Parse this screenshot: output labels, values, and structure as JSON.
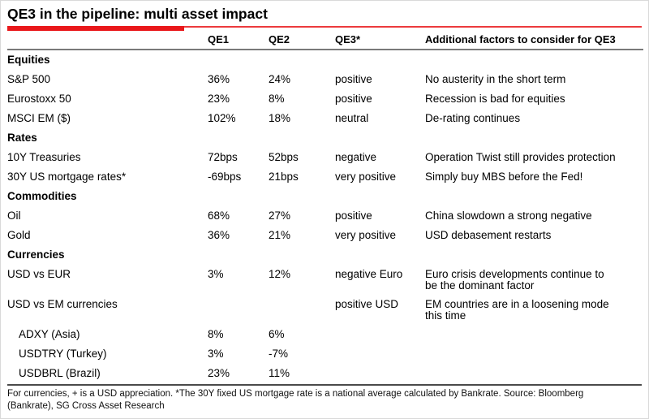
{
  "chart_data": {
    "type": "table",
    "title": "QE3 in the pipeline: multi asset impact",
    "columns": {
      "asset": "",
      "qe1": "QE1",
      "qe2": "QE2",
      "qe3": "QE3*",
      "notes": "Additional factors to consider for QE3"
    },
    "sections": [
      {
        "name": "Equities",
        "rows": [
          {
            "asset": "S&P 500",
            "qe1": "36%",
            "qe2": "24%",
            "qe3": "positive",
            "note": "No austerity in the short term",
            "indent": false
          },
          {
            "asset": "Eurostoxx 50",
            "qe1": "23%",
            "qe2": "8%",
            "qe3": "positive",
            "note": "Recession is bad for equities",
            "indent": false
          },
          {
            "asset": "MSCI EM ($)",
            "qe1": "102%",
            "qe2": "18%",
            "qe3": "neutral",
            "note": "De-rating continues",
            "indent": false
          }
        ]
      },
      {
        "name": "Rates",
        "rows": [
          {
            "asset": "10Y Treasuries",
            "qe1": "72bps",
            "qe2": "52bps",
            "qe3": "negative",
            "note": "Operation Twist still provides protection",
            "indent": false
          },
          {
            "asset": "30Y US mortgage rates*",
            "qe1": "-69bps",
            "qe2": "21bps",
            "qe3": "very positive",
            "note": "Simply buy MBS before the Fed!",
            "indent": false
          }
        ]
      },
      {
        "name": "Commodities",
        "rows": [
          {
            "asset": "Oil",
            "qe1": "68%",
            "qe2": "27%",
            "qe3": "positive",
            "note": "China slowdown a strong negative",
            "indent": false
          },
          {
            "asset": "Gold",
            "qe1": "36%",
            "qe2": "21%",
            "qe3": "very positive",
            "note": "USD debasement restarts",
            "indent": false
          }
        ]
      },
      {
        "name": "Currencies",
        "rows": [
          {
            "asset": "USD vs EUR",
            "qe1": "3%",
            "qe2": "12%",
            "qe3": "negative Euro",
            "note": "Euro crisis developments continue to be the dominant factor",
            "indent": false
          },
          {
            "asset": "USD vs EM currencies",
            "qe1": "",
            "qe2": "",
            "qe3": "positive USD",
            "note": "EM countries are in a loosening mode this time",
            "indent": false
          },
          {
            "asset": "ADXY (Asia)",
            "qe1": "8%",
            "qe2": "6%",
            "qe3": "",
            "note": "",
            "indent": true
          },
          {
            "asset": "USDTRY (Turkey)",
            "qe1": "3%",
            "qe2": "-7%",
            "qe3": "",
            "note": "",
            "indent": true
          },
          {
            "asset": "USDBRL (Brazil)",
            "qe1": "23%",
            "qe2": "11%",
            "qe3": "",
            "note": "",
            "indent": true
          }
        ]
      }
    ],
    "footnote": "For currencies, + is a USD appreciation. *The 30Y fixed US mortgage rate is a national average calculated by Bankrate. Source: Bloomberg (Bankrate), SG Cross Asset Research",
    "footnote_lines": [
      "For currencies, + is a USD appreciation. *The 30Y fixed US mortgage rate is a national average calculated by Bankrate. Source: Bloomberg",
      "(Bankrate), SG Cross Asset Research"
    ]
  },
  "colors": {
    "accent_red": "#e9181b",
    "header_rule": "#7a7a7a",
    "footer_rule": "#4a4a4a",
    "text": "#000000",
    "background": "#ffffff"
  }
}
